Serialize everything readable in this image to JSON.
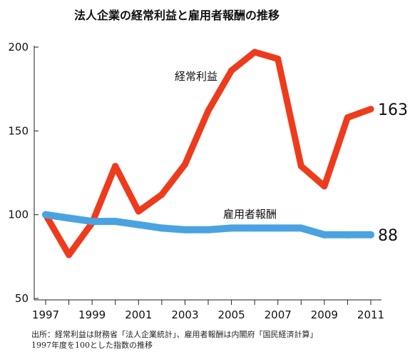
{
  "chart_data": {
    "type": "line",
    "title": "法人企業の経常利益と雇用者報酬の推移",
    "x": [
      1997,
      1998,
      1999,
      2000,
      2001,
      2002,
      2003,
      2004,
      2005,
      2006,
      2007,
      2008,
      2009,
      2010,
      2011
    ],
    "x_tick_labels": [
      "1997",
      "1999",
      "2001",
      "2003",
      "2005",
      "2007",
      "2009",
      "2011"
    ],
    "y_tick_labels": [
      "200",
      "150",
      "100",
      "50"
    ],
    "ylim": [
      50,
      200
    ],
    "xlim": [
      1997,
      2011
    ],
    "grid": false,
    "series": [
      {
        "name": "経常利益",
        "color": "#ee3b1c",
        "values": [
          100,
          76,
          95,
          129,
          102,
          112,
          130,
          162,
          186,
          197,
          193,
          129,
          117,
          158,
          163
        ],
        "end_label": "163"
      },
      {
        "name": "雇用者報酬",
        "color": "#4aa3e0",
        "values": [
          100,
          98,
          96,
          96,
          94,
          92,
          91,
          91,
          92,
          92,
          92,
          92,
          88,
          88,
          88
        ],
        "end_label": "88"
      }
    ]
  },
  "notes": {
    "line1": "出所：経常利益は財務省「法人企業統計」、雇用者報酬は内閣府「国民経済計算」",
    "line2": "1997年度を100とした指数の推移"
  }
}
